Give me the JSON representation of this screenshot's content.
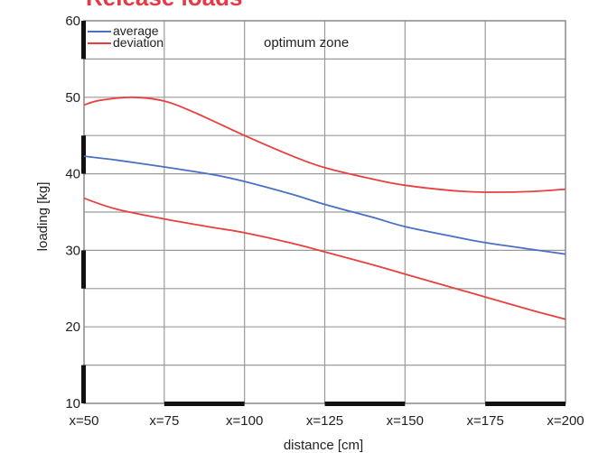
{
  "chart_data": {
    "type": "line",
    "title": "Release loads",
    "xlabel": "distance [cm]",
    "ylabel": "loading [kg]",
    "x_ticks": [
      "x=50",
      "x=75",
      "x=100",
      "x=125",
      "x=150",
      "x=175",
      "x=200"
    ],
    "x_values": [
      50,
      75,
      100,
      125,
      150,
      175,
      200
    ],
    "xlim": [
      50,
      200
    ],
    "y_ticks": [
      "10",
      "20",
      "30",
      "40",
      "50",
      "60"
    ],
    "ylim": [
      10,
      60
    ],
    "grid": true,
    "legend_position": "top-left",
    "annotation": "optimum zone",
    "series": [
      {
        "name": "average",
        "color": "#4a6fc4",
        "x": [
          50,
          60,
          75,
          90,
          100,
          115,
          125,
          140,
          150,
          165,
          175,
          190,
          200
        ],
        "y": [
          42.3,
          41.8,
          40.9,
          39.9,
          39.0,
          37.3,
          36.0,
          34.3,
          33.1,
          31.8,
          31.0,
          30.1,
          29.5
        ]
      },
      {
        "name": "deviation",
        "color": "#e8403e",
        "x": [
          50,
          55,
          65,
          75,
          85,
          100,
          115,
          125,
          140,
          150,
          165,
          175,
          190,
          200
        ],
        "y": [
          49.0,
          49.6,
          50.0,
          49.5,
          47.9,
          45.0,
          42.3,
          40.8,
          39.3,
          38.5,
          37.8,
          37.6,
          37.7,
          38.0
        ]
      },
      {
        "color": "#e8403e",
        "x": [
          50,
          60,
          75,
          90,
          100,
          115,
          125,
          140,
          150,
          165,
          175,
          190,
          200
        ],
        "y": [
          36.8,
          35.4,
          34.1,
          33.0,
          32.3,
          30.9,
          29.8,
          28.1,
          26.9,
          25.1,
          23.9,
          22.1,
          21.0
        ]
      }
    ]
  }
}
